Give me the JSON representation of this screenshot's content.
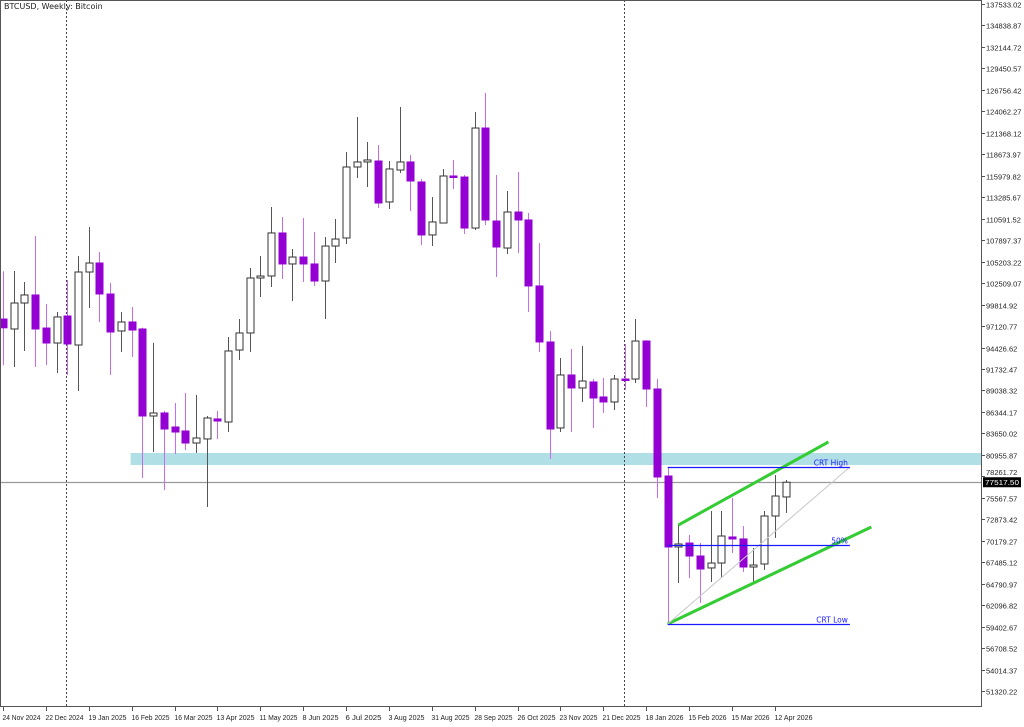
{
  "chart_data": {
    "type": "candlestick",
    "title": "BTCUSD, Weekly: Bitcoin",
    "ylim": [
      51320.22,
      137533.02
    ],
    "grid": false,
    "colors": {
      "bull_body": "#ffffff",
      "bull_outline": "#333333",
      "bear_body": "#9400d3",
      "bear_wick": "#c86bf0",
      "zone": "#b0e0e6",
      "level_line": "#1a1aff",
      "channel": "#33cc33",
      "price_line": "#9a9a9a"
    },
    "y_ticks": [
      "137533.02",
      "134838.87",
      "132144.72",
      "129450.57",
      "126756.42",
      "124062.27",
      "121368.12",
      "118673.97",
      "115979.82",
      "113285.67",
      "110591.52",
      "107897.37",
      "105203.22",
      "102509.07",
      "99814.92",
      "97120.77",
      "94426.62",
      "91732.47",
      "89038.32",
      "86344.17",
      "83650.02",
      "80955.87",
      "78261.72",
      "75567.57",
      "72873.42",
      "70179.27",
      "67485.12",
      "64790.97",
      "62096.82",
      "59402.67",
      "56708.52",
      "54014.37",
      "51320.22"
    ],
    "x_ticks": [
      "24 Nov 2024",
      "22 Dec 2024",
      "19 Jan 2025",
      "16 Feb 2025",
      "16 Mar 2025",
      "13 Apr 2025",
      "11 May 2025",
      "8 Jun 2025",
      "6 Jul 2025",
      "3 Aug 2025",
      "31 Aug 2025",
      "28 Sep 2025",
      "26 Oct 2025",
      "23 Nov 2025",
      "21 Dec 2025",
      "18 Jan 2026",
      "15 Feb 2026",
      "15 Mar 2026",
      "12 Apr 2026"
    ],
    "current_price": "77517.50",
    "period_separators": [
      "2025-01-05",
      "2026-01-04"
    ],
    "candles": [
      {
        "date": "2024-11-24",
        "o": 98000,
        "h": 104000,
        "l": 92200,
        "c": 96900
      },
      {
        "date": "2024-12-01",
        "o": 96750,
        "h": 104030,
        "l": 91980,
        "c": 100010
      },
      {
        "date": "2024-12-08",
        "o": 100010,
        "h": 102650,
        "l": 93990,
        "c": 101020
      },
      {
        "date": "2024-12-15",
        "o": 101020,
        "h": 108420,
        "l": 91980,
        "c": 96750
      },
      {
        "date": "2024-12-22",
        "o": 96870,
        "h": 99890,
        "l": 92230,
        "c": 94990
      },
      {
        "date": "2024-12-29",
        "o": 94990,
        "h": 98880,
        "l": 91230,
        "c": 98260
      },
      {
        "date": "2025-01-05",
        "o": 98380,
        "h": 102900,
        "l": 90980,
        "c": 94870
      },
      {
        "date": "2025-01-12",
        "o": 94740,
        "h": 105910,
        "l": 88970,
        "c": 103900
      },
      {
        "date": "2025-01-19",
        "o": 103900,
        "h": 109550,
        "l": 99380,
        "c": 105030
      },
      {
        "date": "2025-01-26",
        "o": 105030,
        "h": 106410,
        "l": 97630,
        "c": 101140
      },
      {
        "date": "2025-02-02",
        "o": 101140,
        "h": 102520,
        "l": 90980,
        "c": 96370
      },
      {
        "date": "2025-02-09",
        "o": 96500,
        "h": 98880,
        "l": 93860,
        "c": 97630
      },
      {
        "date": "2025-02-16",
        "o": 97630,
        "h": 99510,
        "l": 93240,
        "c": 96620
      },
      {
        "date": "2025-02-23",
        "o": 96750,
        "h": 96900,
        "l": 78050,
        "c": 85830
      },
      {
        "date": "2025-03-02",
        "o": 85830,
        "h": 95000,
        "l": 81310,
        "c": 86210
      },
      {
        "date": "2025-03-09",
        "o": 86210,
        "h": 86460,
        "l": 76550,
        "c": 84200
      },
      {
        "date": "2025-03-16",
        "o": 84450,
        "h": 87460,
        "l": 81060,
        "c": 83820
      },
      {
        "date": "2025-03-23",
        "o": 83950,
        "h": 88720,
        "l": 81560,
        "c": 82440
      },
      {
        "date": "2025-03-30",
        "o": 82440,
        "h": 88470,
        "l": 81190,
        "c": 83070
      },
      {
        "date": "2025-04-06",
        "o": 82950,
        "h": 85830,
        "l": 74410,
        "c": 85580
      },
      {
        "date": "2025-04-13",
        "o": 85460,
        "h": 86460,
        "l": 82950,
        "c": 85200
      },
      {
        "date": "2025-04-20",
        "o": 85080,
        "h": 95750,
        "l": 83820,
        "c": 93990
      },
      {
        "date": "2025-04-27",
        "o": 94110,
        "h": 98000,
        "l": 92860,
        "c": 96250
      },
      {
        "date": "2025-05-04",
        "o": 96250,
        "h": 104400,
        "l": 93860,
        "c": 103150
      },
      {
        "date": "2025-05-11",
        "o": 103150,
        "h": 105910,
        "l": 100760,
        "c": 103400
      },
      {
        "date": "2025-05-18",
        "o": 103400,
        "h": 112060,
        "l": 102020,
        "c": 108800
      },
      {
        "date": "2025-05-25",
        "o": 108800,
        "h": 110800,
        "l": 103020,
        "c": 104910
      },
      {
        "date": "2025-06-01",
        "o": 104910,
        "h": 106790,
        "l": 100260,
        "c": 105780
      },
      {
        "date": "2025-06-08",
        "o": 105780,
        "h": 110680,
        "l": 102650,
        "c": 104910
      },
      {
        "date": "2025-06-15",
        "o": 104910,
        "h": 108920,
        "l": 102150,
        "c": 102770
      },
      {
        "date": "2025-06-22",
        "o": 102770,
        "h": 108290,
        "l": 98000,
        "c": 107160
      },
      {
        "date": "2025-06-29",
        "o": 107160,
        "h": 110550,
        "l": 105030,
        "c": 108040
      },
      {
        "date": "2025-07-06",
        "o": 108170,
        "h": 118960,
        "l": 107420,
        "c": 117080
      },
      {
        "date": "2025-07-13",
        "o": 117080,
        "h": 123350,
        "l": 115700,
        "c": 117710
      },
      {
        "date": "2025-07-20",
        "o": 117710,
        "h": 120220,
        "l": 114570,
        "c": 117960
      },
      {
        "date": "2025-07-27",
        "o": 117830,
        "h": 119840,
        "l": 111930,
        "c": 112560
      },
      {
        "date": "2025-08-03",
        "o": 112690,
        "h": 117830,
        "l": 111810,
        "c": 116830
      },
      {
        "date": "2025-08-10",
        "o": 116700,
        "h": 124610,
        "l": 116330,
        "c": 117710
      },
      {
        "date": "2025-08-17",
        "o": 117710,
        "h": 118580,
        "l": 111560,
        "c": 115320
      },
      {
        "date": "2025-08-24",
        "o": 115200,
        "h": 115570,
        "l": 107290,
        "c": 108550
      },
      {
        "date": "2025-08-31",
        "o": 108550,
        "h": 113310,
        "l": 107160,
        "c": 110180
      },
      {
        "date": "2025-09-07",
        "o": 110050,
        "h": 116830,
        "l": 110050,
        "c": 115950
      },
      {
        "date": "2025-09-14",
        "o": 115950,
        "h": 117960,
        "l": 114320,
        "c": 115820
      },
      {
        "date": "2025-09-21",
        "o": 115820,
        "h": 116070,
        "l": 108670,
        "c": 109420
      },
      {
        "date": "2025-09-28",
        "o": 109420,
        "h": 123980,
        "l": 109170,
        "c": 121970
      },
      {
        "date": "2025-10-05",
        "o": 121970,
        "h": 126360,
        "l": 109800,
        "c": 110430
      },
      {
        "date": "2025-10-12",
        "o": 110300,
        "h": 116070,
        "l": 103270,
        "c": 107040
      },
      {
        "date": "2025-10-19",
        "o": 106910,
        "h": 114070,
        "l": 106160,
        "c": 111430
      },
      {
        "date": "2025-10-26",
        "o": 111430,
        "h": 116450,
        "l": 106290,
        "c": 110430
      },
      {
        "date": "2025-11-02",
        "o": 110430,
        "h": 111310,
        "l": 98880,
        "c": 102150
      },
      {
        "date": "2025-11-09",
        "o": 102150,
        "h": 107540,
        "l": 93860,
        "c": 95120
      },
      {
        "date": "2025-11-16",
        "o": 95120,
        "h": 96500,
        "l": 80440,
        "c": 84200
      },
      {
        "date": "2025-11-23",
        "o": 84330,
        "h": 93110,
        "l": 83820,
        "c": 90980
      },
      {
        "date": "2025-11-30",
        "o": 90980,
        "h": 94240,
        "l": 83820,
        "c": 89350
      },
      {
        "date": "2025-12-07",
        "o": 89350,
        "h": 94620,
        "l": 87590,
        "c": 90220
      },
      {
        "date": "2025-12-14",
        "o": 90100,
        "h": 90470,
        "l": 84330,
        "c": 88090
      },
      {
        "date": "2025-12-21",
        "o": 88220,
        "h": 90600,
        "l": 86210,
        "c": 87590
      },
      {
        "date": "2025-12-28",
        "o": 87590,
        "h": 90980,
        "l": 86580,
        "c": 90470
      },
      {
        "date": "2026-01-04",
        "o": 90470,
        "h": 94870,
        "l": 89090,
        "c": 90350
      },
      {
        "date": "2026-01-11",
        "o": 90470,
        "h": 98000,
        "l": 89970,
        "c": 95240
      },
      {
        "date": "2026-01-18",
        "o": 95240,
        "h": 95370,
        "l": 86960,
        "c": 89220
      },
      {
        "date": "2026-01-25",
        "o": 89220,
        "h": 90470,
        "l": 75540,
        "c": 78180
      },
      {
        "date": "2026-02-01",
        "o": 78300,
        "h": 79430,
        "l": 59730,
        "c": 69390
      },
      {
        "date": "2026-02-08",
        "o": 69390,
        "h": 72150,
        "l": 64870,
        "c": 69770
      },
      {
        "date": "2026-02-15",
        "o": 69890,
        "h": 70900,
        "l": 65500,
        "c": 68260
      },
      {
        "date": "2026-02-22",
        "o": 68260,
        "h": 69890,
        "l": 62370,
        "c": 66630
      },
      {
        "date": "2026-03-01",
        "o": 66760,
        "h": 73910,
        "l": 65000,
        "c": 67380
      },
      {
        "date": "2026-03-08",
        "o": 67380,
        "h": 73910,
        "l": 65500,
        "c": 70770
      },
      {
        "date": "2026-03-15",
        "o": 70650,
        "h": 75540,
        "l": 68640,
        "c": 70400
      },
      {
        "date": "2026-03-22",
        "o": 70400,
        "h": 72030,
        "l": 66260,
        "c": 66880
      },
      {
        "date": "2026-03-29",
        "o": 66880,
        "h": 69270,
        "l": 65000,
        "c": 67130
      },
      {
        "date": "2026-04-05",
        "o": 67260,
        "h": 73910,
        "l": 66510,
        "c": 73280
      },
      {
        "date": "2026-04-12",
        "o": 73280,
        "h": 78430,
        "l": 70520,
        "c": 75790
      },
      {
        "date": "2026-04-19",
        "o": 75670,
        "h": 77800,
        "l": 73660,
        "c": 77517.5
      }
    ],
    "annotations": {
      "zone": {
        "from_date": "2025-02-16",
        "price_low": 79680,
        "price_high": 81190
      },
      "levels": [
        {
          "label": "CRT High",
          "price": 79430,
          "from_date": "2026-02-01",
          "to_date": "2026-05-31"
        },
        {
          "label": "50%",
          "price": 69580,
          "from_date": "2026-02-01",
          "to_date": "2026-05-31"
        },
        {
          "label": "CRT Low",
          "price": 59730,
          "from_date": "2026-02-01",
          "to_date": "2026-05-31"
        }
      ],
      "trendlines": [
        {
          "kind": "channel-upper",
          "from_date": "2026-02-08",
          "from_price": 72150,
          "to_date": "2026-05-17",
          "to_price": 82570
        },
        {
          "kind": "channel-lower",
          "from_date": "2026-02-01",
          "from_price": 59730,
          "to_date": "2026-06-14",
          "to_price": 71900
        },
        {
          "kind": "diagonal",
          "from_date": "2026-02-01",
          "from_price": 59730,
          "to_date": "2026-05-31",
          "to_price": 79430
        }
      ]
    }
  }
}
